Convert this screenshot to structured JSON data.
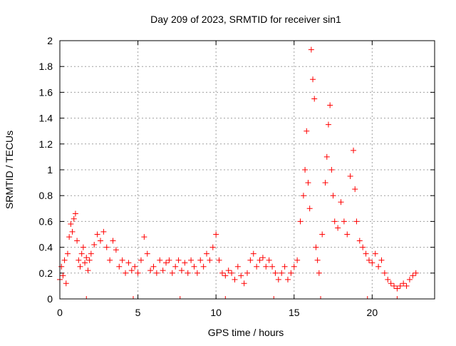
{
  "chart_data": {
    "type": "scatter",
    "title": "Day 209 of 2023, SRMTID for receiver sin1",
    "xlabel": "GPS time / hours",
    "ylabel": "SRMTID / TECUs",
    "xlim": [
      0,
      24
    ],
    "ylim": [
      0,
      2
    ],
    "xticks": [
      0,
      5,
      10,
      15,
      20
    ],
    "xtick_labels": [
      "0",
      "5",
      "10",
      "15",
      "20"
    ],
    "yticks": [
      0,
      0.2,
      0.4,
      0.6,
      0.8,
      1,
      1.2,
      1.4,
      1.6,
      1.8,
      2
    ],
    "ytick_labels": [
      "0",
      "0.2",
      "0.4",
      "0.6",
      "0.8",
      "1",
      "1.2",
      "1.4",
      "1.6",
      "1.8",
      "2"
    ],
    "grid": true,
    "marker": "+",
    "color": "#ff0000",
    "series": [
      {
        "name": "SRMTID",
        "points": [
          [
            0.0,
            0.15
          ],
          [
            0.1,
            0.25
          ],
          [
            0.2,
            0.18
          ],
          [
            0.3,
            0.3
          ],
          [
            0.4,
            0.12
          ],
          [
            0.5,
            0.35
          ],
          [
            0.6,
            0.48
          ],
          [
            0.7,
            0.58
          ],
          [
            0.8,
            0.52
          ],
          [
            0.9,
            0.62
          ],
          [
            1.0,
            0.66
          ],
          [
            1.1,
            0.45
          ],
          [
            1.2,
            0.3
          ],
          [
            1.3,
            0.25
          ],
          [
            1.4,
            0.35
          ],
          [
            1.5,
            0.4
          ],
          [
            1.6,
            0.28
          ],
          [
            1.7,
            0.32
          ],
          [
            1.8,
            0.22
          ],
          [
            1.9,
            0.3
          ],
          [
            2.0,
            0.35
          ],
          [
            2.2,
            0.42
          ],
          [
            2.4,
            0.5
          ],
          [
            2.6,
            0.45
          ],
          [
            2.8,
            0.52
          ],
          [
            3.0,
            0.4
          ],
          [
            3.2,
            0.3
          ],
          [
            3.4,
            0.45
          ],
          [
            3.6,
            0.38
          ],
          [
            3.8,
            0.25
          ],
          [
            4.0,
            0.3
          ],
          [
            4.2,
            0.2
          ],
          [
            4.4,
            0.28
          ],
          [
            4.6,
            0.22
          ],
          [
            4.8,
            0.25
          ],
          [
            5.0,
            0.2
          ],
          [
            5.2,
            0.3
          ],
          [
            5.4,
            0.48
          ],
          [
            5.6,
            0.35
          ],
          [
            5.8,
            0.22
          ],
          [
            6.0,
            0.25
          ],
          [
            6.2,
            0.2
          ],
          [
            6.4,
            0.3
          ],
          [
            6.6,
            0.22
          ],
          [
            6.8,
            0.28
          ],
          [
            7.0,
            0.3
          ],
          [
            7.2,
            0.2
          ],
          [
            7.4,
            0.25
          ],
          [
            7.6,
            0.3
          ],
          [
            7.8,
            0.22
          ],
          [
            8.0,
            0.28
          ],
          [
            8.2,
            0.2
          ],
          [
            8.4,
            0.3
          ],
          [
            8.6,
            0.25
          ],
          [
            8.8,
            0.2
          ],
          [
            9.0,
            0.3
          ],
          [
            9.2,
            0.25
          ],
          [
            9.4,
            0.35
          ],
          [
            9.6,
            0.3
          ],
          [
            9.8,
            0.4
          ],
          [
            10.0,
            0.5
          ],
          [
            10.2,
            0.3
          ],
          [
            10.4,
            0.2
          ],
          [
            10.6,
            0.18
          ],
          [
            10.8,
            0.22
          ],
          [
            11.0,
            0.2
          ],
          [
            11.2,
            0.15
          ],
          [
            11.4,
            0.25
          ],
          [
            11.6,
            0.18
          ],
          [
            11.8,
            0.12
          ],
          [
            12.0,
            0.2
          ],
          [
            12.2,
            0.3
          ],
          [
            12.4,
            0.35
          ],
          [
            12.6,
            0.25
          ],
          [
            12.8,
            0.3
          ],
          [
            13.0,
            0.32
          ],
          [
            13.2,
            0.25
          ],
          [
            13.4,
            0.3
          ],
          [
            13.6,
            0.25
          ],
          [
            13.8,
            0.2
          ],
          [
            14.0,
            0.15
          ],
          [
            14.2,
            0.2
          ],
          [
            14.4,
            0.25
          ],
          [
            14.6,
            0.15
          ],
          [
            14.8,
            0.2
          ],
          [
            15.0,
            0.25
          ],
          [
            15.2,
            0.3
          ],
          [
            15.4,
            0.6
          ],
          [
            15.6,
            0.8
          ],
          [
            15.7,
            1.0
          ],
          [
            15.8,
            1.3
          ],
          [
            15.9,
            0.9
          ],
          [
            16.0,
            0.7
          ],
          [
            16.1,
            1.93
          ],
          [
            16.2,
            1.7
          ],
          [
            16.3,
            1.55
          ],
          [
            16.4,
            0.4
          ],
          [
            16.5,
            0.3
          ],
          [
            16.6,
            0.2
          ],
          [
            16.8,
            0.5
          ],
          [
            17.0,
            0.9
          ],
          [
            17.1,
            1.1
          ],
          [
            17.2,
            1.35
          ],
          [
            17.3,
            1.5
          ],
          [
            17.4,
            1.0
          ],
          [
            17.5,
            0.8
          ],
          [
            17.6,
            0.6
          ],
          [
            17.8,
            0.55
          ],
          [
            18.0,
            0.75
          ],
          [
            18.2,
            0.6
          ],
          [
            18.4,
            0.5
          ],
          [
            18.6,
            0.95
          ],
          [
            18.8,
            1.15
          ],
          [
            18.9,
            0.85
          ],
          [
            19.0,
            0.6
          ],
          [
            19.2,
            0.45
          ],
          [
            19.4,
            0.4
          ],
          [
            19.6,
            0.35
          ],
          [
            19.8,
            0.3
          ],
          [
            20.0,
            0.28
          ],
          [
            20.2,
            0.35
          ],
          [
            20.4,
            0.25
          ],
          [
            20.6,
            0.3
          ],
          [
            20.8,
            0.2
          ],
          [
            21.0,
            0.15
          ],
          [
            21.2,
            0.12
          ],
          [
            21.4,
            0.1
          ],
          [
            21.6,
            0.08
          ],
          [
            21.8,
            0.1
          ],
          [
            22.0,
            0.12
          ],
          [
            22.2,
            0.1
          ],
          [
            22.4,
            0.15
          ],
          [
            22.6,
            0.18
          ],
          [
            22.8,
            0.2
          ]
        ]
      }
    ],
    "baseline_markers": [
      1.7,
      4.7,
      7.7,
      10.6,
      13.7,
      16.7,
      19.7,
      21.6
    ]
  }
}
